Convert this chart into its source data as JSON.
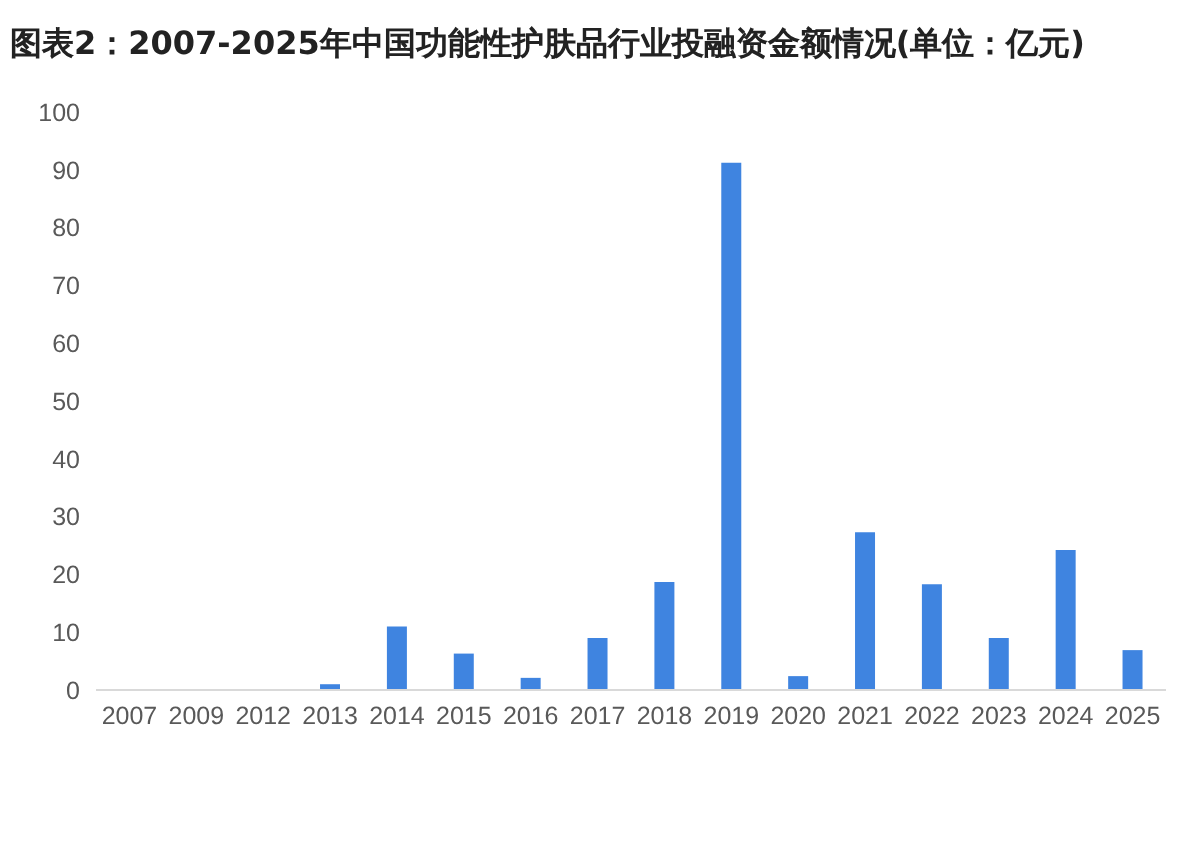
{
  "chart_data": {
    "type": "bar",
    "title": "图表2：2007-2025年中国功能性护肤品行业投融资金额情况(单位：亿元)",
    "categories": [
      "2007",
      "2009",
      "2012",
      "2013",
      "2014",
      "2015",
      "2016",
      "2017",
      "2018",
      "2019",
      "2020",
      "2021",
      "2022",
      "2023",
      "2024",
      "2025"
    ],
    "values": [
      0,
      0,
      0,
      1,
      11,
      6.3,
      2.1,
      9,
      18.7,
      91.2,
      2.4,
      27.3,
      18.3,
      9,
      24.2,
      6.9
    ],
    "color": "#3f84e0",
    "ylim": [
      0,
      100
    ],
    "yticks": [
      0,
      10,
      20,
      30,
      40,
      50,
      60,
      70,
      80,
      90,
      100
    ]
  }
}
